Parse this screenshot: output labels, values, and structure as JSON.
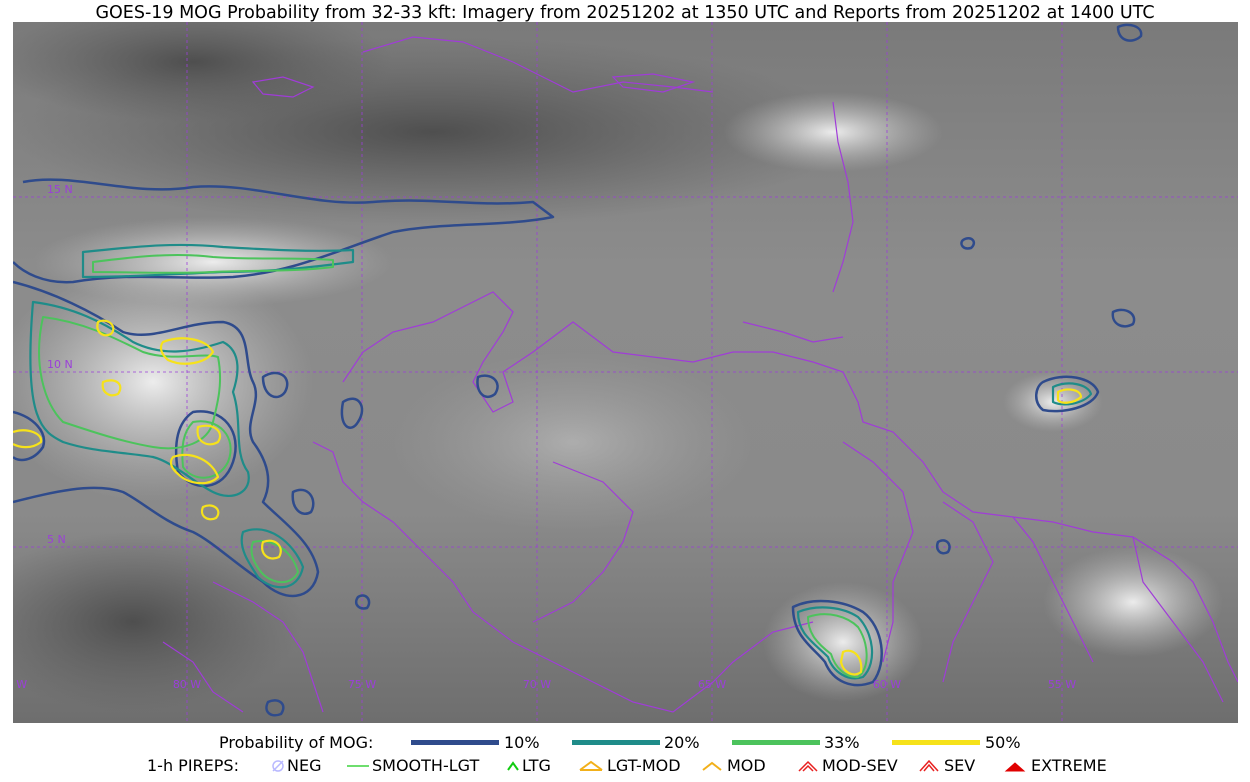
{
  "title": "GOES-19 MOG Probability from 32-33 kft: Imagery from 20251202 at 1350 UTC and Reports from 20251202 at 1400 UTC",
  "map": {
    "lat_labels": [
      "15 N",
      "10 N",
      "5 N"
    ],
    "lon_labels": [
      "85 W",
      "80 W",
      "75 W",
      "70 W",
      "65 W",
      "60 W",
      "55 W"
    ],
    "contour_colors": {
      "p10": "#2f4b8c",
      "p20": "#1f8c89",
      "p33": "#4cc35c",
      "p50": "#f6e21a"
    },
    "border_color": "#a03cd8",
    "grid_color": "#9b3fd9"
  },
  "legend": {
    "prob_label": "Probability of MOG:",
    "levels": [
      {
        "label": "10%",
        "color": "#2f4b8c"
      },
      {
        "label": "20%",
        "color": "#1f8c89"
      },
      {
        "label": "33%",
        "color": "#4cc35c"
      },
      {
        "label": "50%",
        "color": "#f6e21a"
      }
    ],
    "pirep_label": "1-h PIREPS:",
    "pireps": [
      {
        "label": "NEG",
        "icon": "neg-pirep-icon",
        "color": "#b9b9ff"
      },
      {
        "label": "SMOOTH-LGT",
        "icon": "smooth-lgt-pirep-icon",
        "color": "#3fd43f"
      },
      {
        "label": "LTG",
        "icon": "ltg-pirep-icon",
        "color": "#11cc11"
      },
      {
        "label": "LGT-MOD",
        "icon": "lgt-mod-pirep-icon",
        "color": "#f2b01a"
      },
      {
        "label": "MOD",
        "icon": "mod-pirep-icon",
        "color": "#f2b01a"
      },
      {
        "label": "MOD-SEV",
        "icon": "mod-sev-pirep-icon",
        "color": "#e82020"
      },
      {
        "label": "SEV",
        "icon": "sev-pirep-icon",
        "color": "#e82020"
      },
      {
        "label": "EXTREME",
        "icon": "extreme-pirep-icon",
        "color": "#e00000"
      }
    ]
  }
}
